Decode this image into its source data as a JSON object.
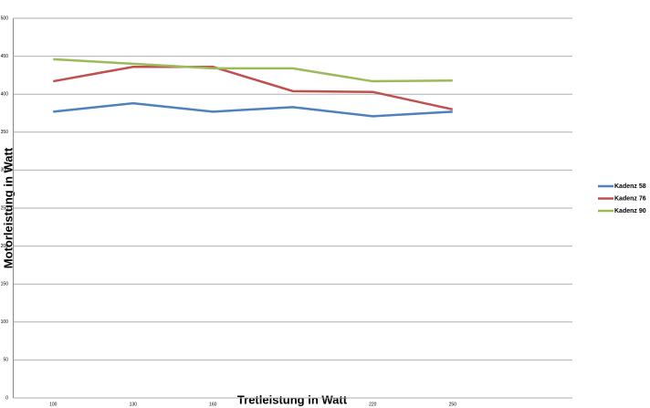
{
  "chart_data": {
    "type": "line",
    "x_label": "Tretleistung in Watt",
    "y_label": "Motorleistung in Watt",
    "categories": [
      "100",
      "130",
      "160",
      null,
      "220",
      "250",
      null
    ],
    "series": [
      {
        "name": "Kadenz 58",
        "color": "#4f81bd",
        "values": [
          377,
          388,
          377,
          383,
          371,
          377,
          null
        ]
      },
      {
        "name": "Kadenz 76",
        "color": "#c0504d",
        "values": [
          417,
          436,
          436,
          404,
          403,
          380,
          null
        ]
      },
      {
        "name": "Kadenz 90",
        "color": "#9bbb59",
        "values": [
          446,
          440,
          434,
          434,
          417,
          418,
          null
        ]
      }
    ],
    "ylim": [
      0,
      500
    ],
    "yticks": [
      0,
      50,
      100,
      150,
      200,
      250,
      300,
      350,
      400,
      450,
      500
    ],
    "grid": true,
    "legend": "right"
  }
}
